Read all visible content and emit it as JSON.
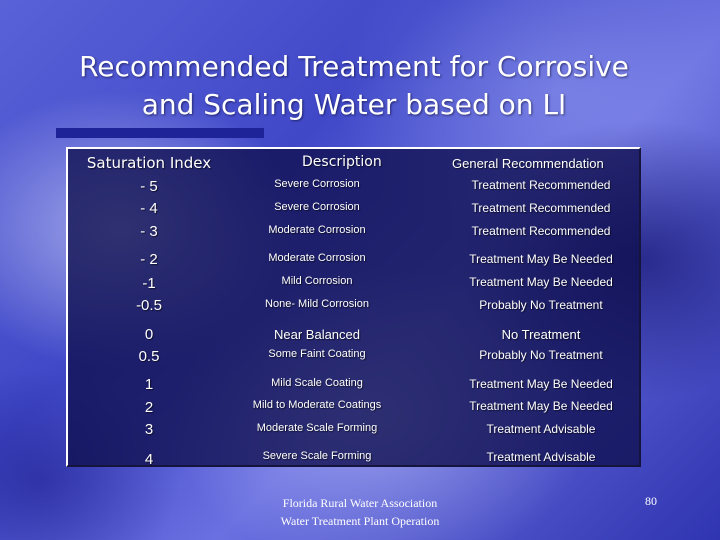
{
  "slide": {
    "title_line1": "Recommended Treatment for Corrosive",
    "title_line2": "and Scaling Water based on LI",
    "page_number": "80"
  },
  "table": {
    "headers": {
      "index": "Saturation Index",
      "description": "Description",
      "recommendation": "General Recommendation"
    },
    "rows": [
      {
        "index": "- 5",
        "description": "Severe Corrosion",
        "recommendation": "Treatment Recommended"
      },
      {
        "index": "- 4",
        "description": "Severe Corrosion",
        "recommendation": "Treatment Recommended"
      },
      {
        "index": "- 3",
        "description": "Moderate Corrosion",
        "recommendation": "Treatment Recommended"
      },
      {
        "index": "- 2",
        "description": "Moderate Corrosion",
        "recommendation": "Treatment May Be Needed"
      },
      {
        "index": "-1",
        "description": "Mild Corrosion",
        "recommendation": "Treatment May Be Needed"
      },
      {
        "index": "-0.5",
        "description": "None- Mild Corrosion",
        "recommendation": "Probably No Treatment"
      },
      {
        "index": "0",
        "description": "Near Balanced",
        "recommendation": "No Treatment"
      },
      {
        "index": "0.5",
        "description": "Some Faint Coating",
        "recommendation": "Probably No Treatment"
      },
      {
        "index": "1",
        "description": "Mild Scale Coating",
        "recommendation": "Treatment May Be Needed"
      },
      {
        "index": "2",
        "description": "Mild to Moderate Coatings",
        "recommendation": "Treatment May Be Needed"
      },
      {
        "index": "3",
        "description": "Moderate Scale Forming",
        "recommendation": "Treatment Advisable"
      },
      {
        "index": "4",
        "description": "Severe Scale Forming",
        "recommendation": "Treatment Advisable"
      }
    ]
  },
  "footer": {
    "line1": "Florida Rural Water Association",
    "line2": "Water Treatment Plant Operation"
  }
}
